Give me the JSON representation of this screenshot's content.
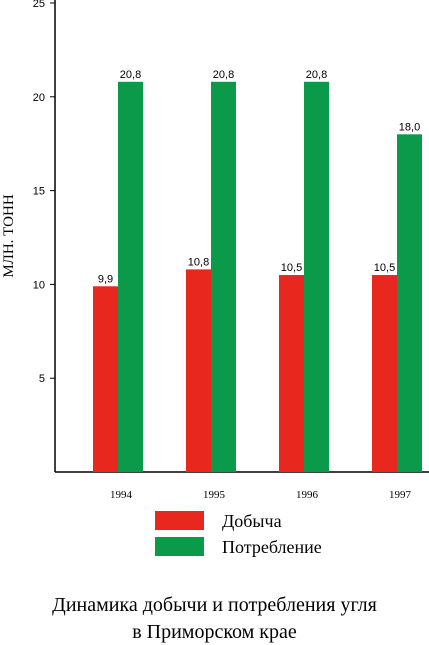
{
  "chart_data": {
    "type": "bar",
    "categories": [
      "1994",
      "1995",
      "1996",
      "1997"
    ],
    "series": [
      {
        "name": "Добыча",
        "values": [
          9.9,
          10.8,
          10.5,
          10.5
        ],
        "labels": [
          "9,9",
          "10,8",
          "10,5",
          "10,5"
        ],
        "color": "#e8281e"
      },
      {
        "name": "Потребление",
        "values": [
          20.8,
          20.8,
          20.8,
          18.0
        ],
        "labels": [
          "20,8",
          "20,8",
          "20,8",
          "18,0"
        ],
        "color": "#0a9a4a"
      }
    ],
    "ylabel": "МЛН. ТОНН",
    "ylim": [
      0,
      25
    ],
    "yticks": [
      5,
      10,
      15,
      20,
      25
    ],
    "grid": false,
    "legend_placement": "bottom"
  },
  "caption": {
    "line1": "Динамика добычи и потребления угля",
    "line2": "в Приморском крае"
  }
}
